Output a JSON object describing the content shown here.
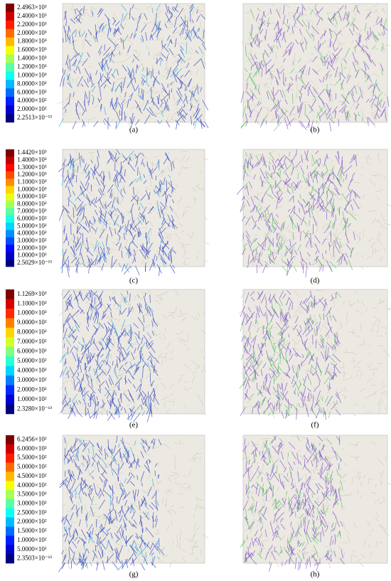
{
  "rows": [
    {
      "colorbar": [
        "2.4963×10³",
        "2.4000×10³",
        "2.2000×10³",
        "2.0000×10³",
        "1.8000×10³",
        "1.6000×10³",
        "1.4000×10³",
        "1.2000×10³",
        "1.0000×10³",
        "8.0000×10²",
        "6.0000×10²",
        "4.0000×10²",
        "2.0000×10²",
        "2.2513×10⁻¹³"
      ],
      "left_label": "(a)",
      "right_label": "(b)"
    },
    {
      "colorbar": [
        "1.4420×10³",
        "1.4000×10³",
        "1.3000×10³",
        "1.2000×10³",
        "1.1000×10³",
        "1.0000×10³",
        "9.0000×10²",
        "8.0000×10²",
        "7.0000×10²",
        "6.0000×10²",
        "5.0000×10²",
        "4.0000×10²",
        "3.0000×10²",
        "2.0000×10²",
        "1.0000×10²",
        "2.5029×10⁻¹³"
      ],
      "left_label": "(c)",
      "right_label": "(d)"
    },
    {
      "colorbar": [
        "1.1269×10³",
        "1.1000×10³",
        "1.0000×10³",
        "9.0000×10²",
        "8.0000×10²",
        "7.0000×10²",
        "6.0000×10²",
        "5.0000×10²",
        "4.0000×10²",
        "3.0000×10²",
        "2.0000×10²",
        "1.0000×10²",
        "2.3280×10⁻¹³"
      ],
      "left_label": "(e)",
      "right_label": "(f)"
    },
    {
      "colorbar": [
        "6.2456×10²",
        "6.0000×10²",
        "5.5000×10²",
        "5.0000×10²",
        "4.5000×10²",
        "4.0000×10²",
        "3.5000×10²",
        "3.0000×10²",
        "2.5000×10²",
        "2.0000×10²",
        "1.5000×10²",
        "1.0000×10²",
        "5.0000×10¹",
        "2.3503×10⁻¹³"
      ],
      "left_label": "(g)",
      "right_label": "(h)"
    }
  ]
}
